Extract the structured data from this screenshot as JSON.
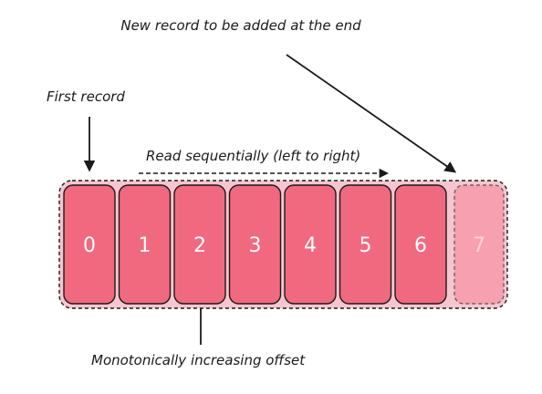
{
  "labels": {
    "new_record": "New record to be added at the end",
    "first_record": "First record",
    "read_direction": "Read sequentially (left to right)",
    "offset": "Monotonically increasing offset"
  },
  "records": [
    "0",
    "1",
    "2",
    "3",
    "4",
    "5",
    "6"
  ],
  "new_record": "7",
  "colors": {
    "record_fill": "#f1697f",
    "new_record_fill": "#f7a0af",
    "log_band": "#f5c6cf",
    "stroke": "#1a1a1a"
  }
}
